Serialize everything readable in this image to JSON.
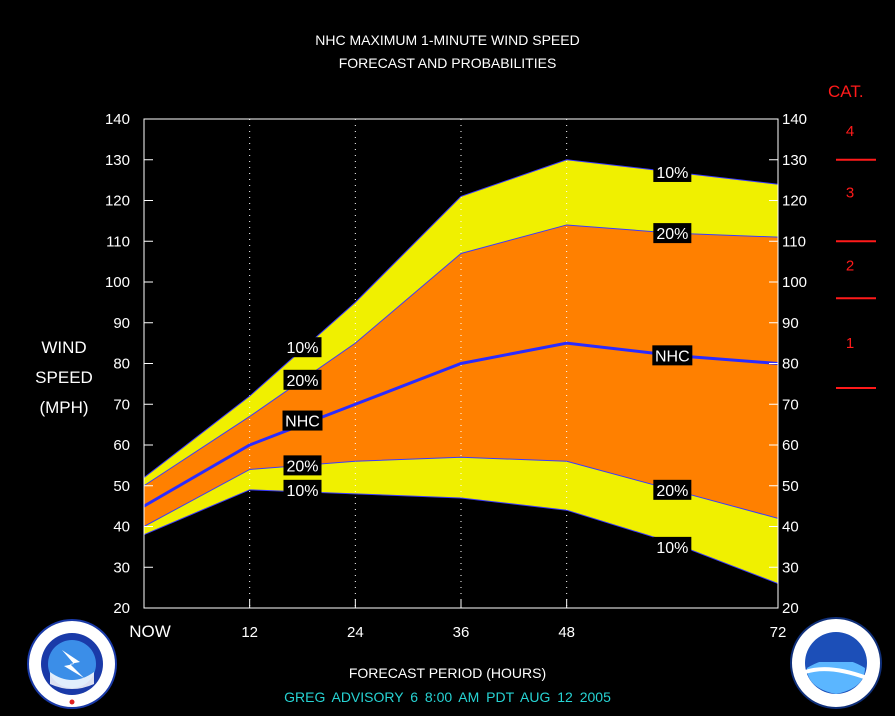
{
  "title_line1": "NHC MAXIMUM 1-MINUTE WIND SPEED",
  "title_line2": "FORECAST AND PROBABILITIES",
  "ylabel_lines": [
    "WIND",
    "SPEED",
    "(MPH)"
  ],
  "xlabel": "FORECAST PERIOD (HOURS)",
  "advisory": "GREG   ADVISORY  6  8:00  AM  PDT  AUG  12  2005",
  "category_title": "CAT.",
  "categories": [
    {
      "label": "4",
      "value": 137
    },
    {
      "label": "3",
      "value": 122
    },
    {
      "label": "2",
      "value": 104
    },
    {
      "label": "1",
      "value": 85
    }
  ],
  "category_thresholds": [
    130,
    110,
    96,
    74
  ],
  "colors": {
    "background": "#000000",
    "plot_frame": "#ffffff",
    "outer_band": "#f0f000",
    "inner_band": "#ff8000",
    "nhc_line": "#2b2bff",
    "band_edge": "#3a3aff",
    "category": "#ff1a1a",
    "advisory_text": "#27d3d3"
  },
  "logos": {
    "left": "national-weather-service-logo",
    "right": "noaa-logo"
  },
  "chart_data": {
    "type": "area",
    "x": [
      0,
      12,
      24,
      36,
      48,
      60,
      72
    ],
    "x_tick_values": [
      0,
      12,
      24,
      36,
      48,
      72
    ],
    "x_tick_labels": [
      "NOW",
      "12",
      "24",
      "36",
      "48",
      "72"
    ],
    "xlim": [
      0,
      72
    ],
    "ylim": [
      20,
      140
    ],
    "y_ticks": [
      20,
      30,
      40,
      50,
      60,
      70,
      80,
      90,
      100,
      110,
      120,
      130,
      140
    ],
    "vertical_gridlines": [
      12,
      24,
      36,
      48
    ],
    "series": [
      {
        "name": "10%",
        "role": "upper-outer",
        "values": [
          52,
          72,
          95,
          121,
          130,
          127,
          124
        ]
      },
      {
        "name": "20%",
        "role": "upper-inner",
        "values": [
          50,
          67,
          85,
          107,
          114,
          112,
          111
        ]
      },
      {
        "name": "NHC",
        "role": "forecast",
        "values": [
          45,
          60,
          70,
          80,
          85,
          82,
          80
        ]
      },
      {
        "name": "20%",
        "role": "lower-inner",
        "values": [
          40,
          54,
          56,
          57,
          56,
          49,
          42
        ]
      },
      {
        "name": "10%",
        "role": "lower-outer",
        "values": [
          38,
          49,
          48,
          47,
          44,
          36,
          26
        ]
      }
    ],
    "annotations": [
      {
        "text": "10%",
        "x": 18,
        "y": 84
      },
      {
        "text": "20%",
        "x": 18,
        "y": 76
      },
      {
        "text": "NHC",
        "x": 18,
        "y": 66
      },
      {
        "text": "20%",
        "x": 18,
        "y": 55
      },
      {
        "text": "10%",
        "x": 18,
        "y": 49
      },
      {
        "text": "10%",
        "x": 60,
        "y": 127
      },
      {
        "text": "20%",
        "x": 60,
        "y": 112
      },
      {
        "text": "NHC",
        "x": 60,
        "y": 82
      },
      {
        "text": "20%",
        "x": 60,
        "y": 49
      },
      {
        "text": "10%",
        "x": 60,
        "y": 35
      }
    ]
  }
}
